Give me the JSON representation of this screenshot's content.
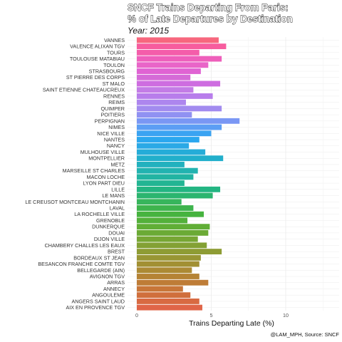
{
  "chart_data": {
    "type": "bar",
    "orientation": "horizontal",
    "title_line1": "SNCF Trains Departing From Paris:",
    "title_line2": "% of Late Departures by Destination",
    "subtitle": "Year: 2015",
    "xlabel": "Trains Departing Late (%)",
    "ylabel": "",
    "caption": "@LAM_MPH, Source: SNCF",
    "xlim": [
      0,
      13.5
    ],
    "xticks": [
      0,
      5,
      10
    ],
    "grid": true,
    "legend": "none",
    "categories": [
      "VANNES",
      "VALENCE ALIXAN TGV",
      "TOURS",
      "TOULOUSE MATABIAU",
      "TOULON",
      "STRASBOURG",
      "ST PIERRE DES CORPS",
      "ST MALO",
      "SAINT ETIENNE CHATEAUCREUX",
      "RENNES",
      "REIMS",
      "QUIMPER",
      "POITIERS",
      "PERPIGNAN",
      "NIMES",
      "NICE VILLE",
      "NANTES",
      "NANCY",
      "MULHOUSE VILLE",
      "MONTPELLIER",
      "METZ",
      "MARSEILLE ST CHARLES",
      "MACON LOCHE",
      "LYON PART DIEU",
      "LILLE",
      "LE MANS",
      "LE CREUSOT MONTCEAU MONTCHANIN",
      "LAVAL",
      "LA ROCHELLE VILLE",
      "GRENOBLE",
      "DUNKERQUE",
      "DOUAI",
      "DIJON VILLE",
      "CHAMBERY CHALLES LES EAUX",
      "BREST",
      "BORDEAUX ST JEAN",
      "BESANCON FRANCHE COMTE TGV",
      "BELLEGARDE (AIN)",
      "AVIGNON TGV",
      "ARRAS",
      "ANNECY",
      "ANGOULEME",
      "ANGERS SAINT LAUD",
      "AIX EN PROVENCE TGV"
    ],
    "values": [
      5.5,
      6.0,
      4.2,
      5.7,
      4.8,
      4.3,
      3.6,
      5.6,
      3.8,
      5.1,
      3.3,
      5.7,
      3.7,
      6.9,
      5.7,
      5.0,
      4.2,
      3.5,
      4.6,
      5.8,
      3.2,
      4.1,
      3.8,
      3.2,
      5.6,
      5.1,
      3.0,
      3.8,
      4.5,
      3.4,
      4.9,
      4.8,
      4.1,
      4.7,
      5.7,
      4.3,
      4.2,
      3.7,
      4.2,
      4.8,
      3.1,
      3.6,
      4.2,
      4.4
    ],
    "colors": [
      "#F7677E",
      "#F75D9E",
      "#F45DAA",
      "#EE5FBB",
      "#E965C8",
      "#E063D3",
      "#D56BD7",
      "#CE6DE0",
      "#C37CE6",
      "#B87DEB",
      "#AD86EE",
      "#A28BEF",
      "#9091F2",
      "#7A97F4",
      "#5C9EF4",
      "#3AA3F2",
      "#2BA7EF",
      "#2BA9E6",
      "#25ACD8",
      "#22AFCB",
      "#22B1BE",
      "#22B3B0",
      "#22B4A2",
      "#22B593",
      "#23B582",
      "#2BB56F",
      "#37B55C",
      "#3EB44D",
      "#46B33F",
      "#53B03A",
      "#60AE36",
      "#6BAA35",
      "#77A634",
      "#83A134",
      "#8E9C34",
      "#989634",
      "#A29033",
      "#AC8A34",
      "#B58335",
      "#BE7C36",
      "#C87638",
      "#D06F3C",
      "#D86A42",
      "#E06548"
    ]
  }
}
